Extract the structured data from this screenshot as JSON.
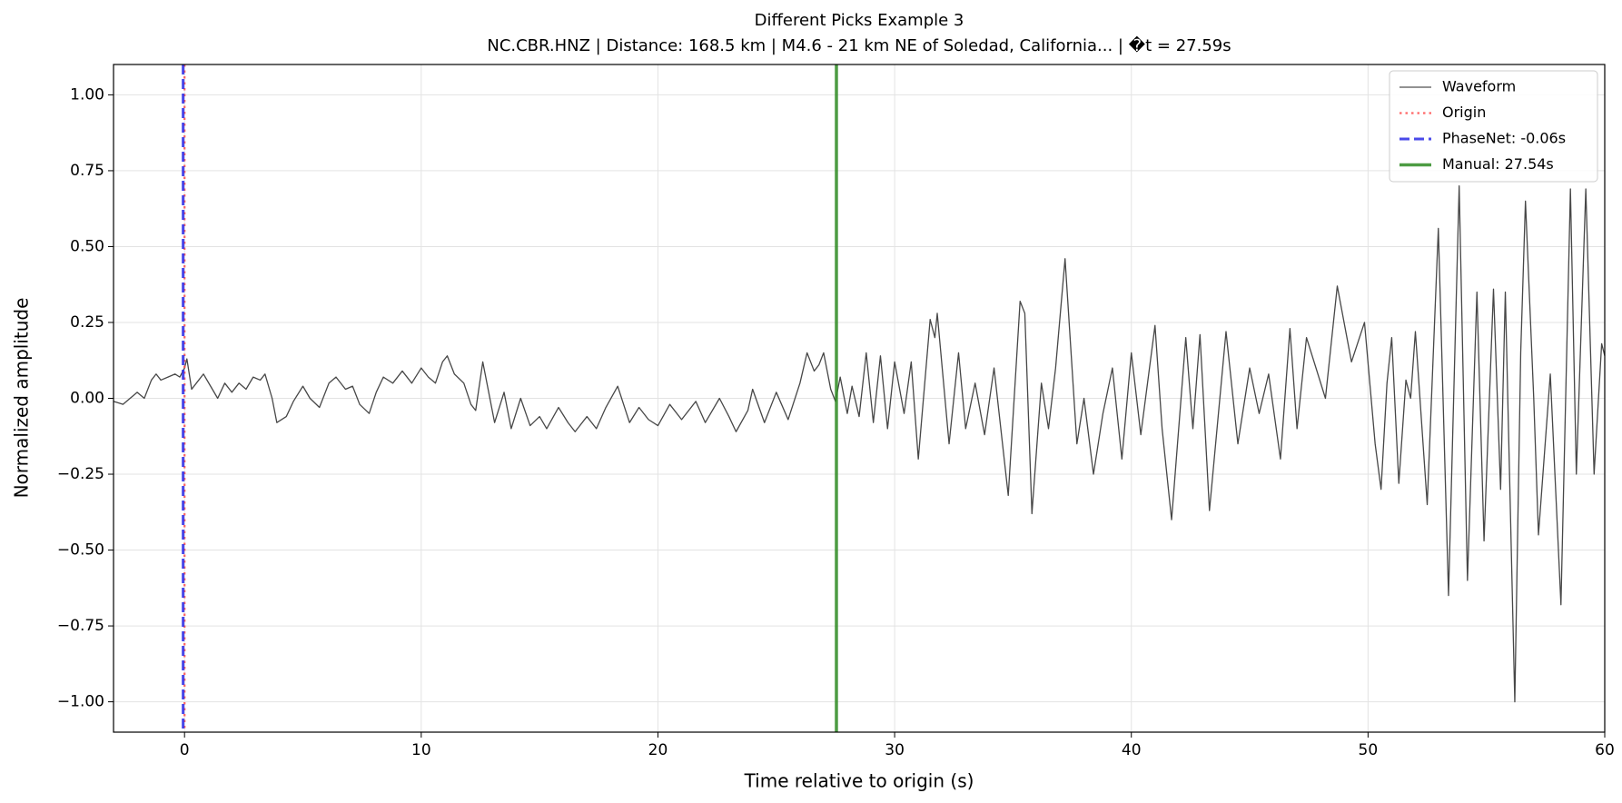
{
  "chart_data": {
    "type": "line",
    "title": "Different Picks Example 3",
    "subtitle": "NC.CBR.HNZ | Distance: 168.5 km | M4.6 - 21 km NE of Soledad, California... | �t = 27.59s",
    "x_label": "Time relative to origin (s)",
    "y_label": "Normalized amplitude",
    "xlim": [
      -3,
      60
    ],
    "ylim": [
      -1.1,
      1.1
    ],
    "xticks": [
      0,
      10,
      20,
      30,
      40,
      50,
      60
    ],
    "yticks": [
      {
        "value": -1,
        "label": "−1.00"
      },
      {
        "value": -0.75,
        "label": "−0.75"
      },
      {
        "value": -0.5,
        "label": "−0.50"
      },
      {
        "value": -0.25,
        "label": "−0.25"
      },
      {
        "value": 0,
        "label": "0.00"
      },
      {
        "value": 0.25,
        "label": "0.25"
      },
      {
        "value": 0.5,
        "label": "0.50"
      },
      {
        "value": 0.75,
        "label": "0.75"
      },
      {
        "value": 1,
        "label": "1.00"
      }
    ],
    "grid": true,
    "legend": "upper right",
    "series": [
      {
        "name": "Waveform",
        "color": "#333333",
        "x": [
          -3,
          -2.6,
          -2.3,
          -2,
          -1.7,
          -1.4,
          -1.2,
          -1,
          -0.7,
          -0.4,
          -0.2,
          0,
          0.1,
          0.3,
          0.6,
          0.8,
          1.1,
          1.4,
          1.7,
          2.0,
          2.3,
          2.6,
          2.9,
          3.2,
          3.4,
          3.7,
          3.9,
          4.3,
          4.6,
          5.0,
          5.3,
          5.7,
          6.1,
          6.4,
          6.8,
          7.1,
          7.4,
          7.8,
          8.1,
          8.4,
          8.8,
          9.2,
          9.6,
          10.0,
          10.3,
          10.6,
          10.9,
          11.1,
          11.4,
          11.8,
          12.1,
          12.3,
          12.6,
          12.9,
          13.1,
          13.5,
          13.8,
          14.2,
          14.6,
          15.0,
          15.3,
          15.8,
          16.2,
          16.5,
          17.0,
          17.4,
          17.8,
          18.3,
          18.8,
          19.2,
          19.6,
          20.0,
          20.5,
          21.0,
          21.6,
          22.0,
          22.6,
          23.0,
          23.3,
          23.8,
          24.0,
          24.5,
          25.0,
          25.5,
          26.0,
          26.3,
          26.6,
          26.8,
          27.0,
          27.3,
          27.5,
          27.7,
          28.0,
          28.2,
          28.5,
          28.8,
          29.1,
          29.4,
          29.7,
          30.0,
          30.4,
          30.7,
          31.0,
          31.5,
          31.7,
          31.8,
          32.3,
          32.7,
          33.0,
          33.4,
          33.8,
          34.2,
          34.8,
          35.3,
          35.5,
          35.8,
          36.2,
          36.5,
          36.8,
          37.2,
          37.7,
          38.0,
          38.4,
          38.8,
          39.2,
          39.6,
          40.0,
          40.4,
          41.0,
          41.3,
          41.7,
          42.3,
          42.6,
          42.9,
          43.3,
          44.0,
          44.5,
          45.0,
          45.4,
          45.8,
          46.3,
          46.7,
          47.0,
          47.4,
          47.8,
          48.2,
          48.7,
          49.3,
          49.85,
          50.3,
          50.55,
          50.8,
          51.0,
          51.3,
          51.6,
          51.8,
          52.0,
          52.5,
          52.97,
          53.4,
          53.85,
          54.2,
          54.6,
          54.9,
          55.3,
          55.6,
          55.8,
          56.2,
          56.45,
          56.65,
          57.0,
          57.2,
          57.7,
          58.15,
          58.55,
          58.8,
          59.2,
          59.55,
          59.87,
          60
        ],
        "values": [
          -0.01,
          -0.02,
          0.0,
          0.02,
          0.0,
          0.06,
          0.08,
          0.06,
          0.07,
          0.08,
          0.07,
          0.1,
          0.13,
          0.03,
          0.06,
          0.08,
          0.04,
          0.0,
          0.05,
          0.02,
          0.05,
          0.03,
          0.07,
          0.06,
          0.08,
          0.0,
          -0.08,
          -0.06,
          -0.01,
          0.04,
          0.0,
          -0.03,
          0.05,
          0.07,
          0.03,
          0.04,
          -0.02,
          -0.05,
          0.02,
          0.07,
          0.05,
          0.09,
          0.05,
          0.1,
          0.07,
          0.05,
          0.12,
          0.14,
          0.08,
          0.05,
          -0.02,
          -0.04,
          0.12,
          0.0,
          -0.08,
          0.02,
          -0.1,
          0.0,
          -0.09,
          -0.06,
          -0.1,
          -0.03,
          -0.08,
          -0.11,
          -0.06,
          -0.1,
          -0.03,
          0.04,
          -0.08,
          -0.03,
          -0.07,
          -0.09,
          -0.02,
          -0.07,
          -0.01,
          -0.08,
          0.0,
          -0.06,
          -0.11,
          -0.04,
          0.03,
          -0.08,
          0.02,
          -0.07,
          0.05,
          0.15,
          0.09,
          0.11,
          0.15,
          0.03,
          -0.01,
          0.07,
          -0.05,
          0.04,
          -0.06,
          0.15,
          -0.08,
          0.14,
          -0.1,
          0.12,
          -0.05,
          0.12,
          -0.2,
          0.26,
          0.2,
          0.28,
          -0.15,
          0.15,
          -0.1,
          0.05,
          -0.12,
          0.1,
          -0.32,
          0.32,
          0.28,
          -0.38,
          0.05,
          -0.1,
          0.1,
          0.46,
          -0.15,
          0.0,
          -0.25,
          -0.05,
          0.1,
          -0.2,
          0.15,
          -0.12,
          0.24,
          -0.1,
          -0.4,
          0.2,
          -0.1,
          0.21,
          -0.37,
          0.22,
          -0.15,
          0.1,
          -0.05,
          0.08,
          -0.2,
          0.23,
          -0.1,
          0.2,
          0.1,
          0.0,
          0.37,
          0.12,
          0.25,
          -0.15,
          -0.3,
          0.05,
          0.2,
          -0.28,
          0.06,
          0.0,
          0.22,
          -0.35,
          0.56,
          -0.65,
          0.7,
          -0.6,
          0.35,
          -0.47,
          0.36,
          -0.3,
          0.35,
          -1.0,
          0.15,
          0.65,
          0.0,
          -0.45,
          0.08,
          -0.68,
          0.69,
          -0.25,
          0.69,
          -0.25,
          0.18,
          0.14
        ]
      }
    ],
    "vlines": [
      {
        "name": "Origin",
        "x": 0,
        "color": "#ff4d4d",
        "style": "dotted"
      },
      {
        "name": "PhaseNet: -0.06s",
        "x": -0.06,
        "color": "#2a2ae6",
        "style": "dashed"
      },
      {
        "name": "Manual: 27.54s",
        "x": 27.54,
        "color": "#2e8b22",
        "style": "solid"
      }
    ]
  }
}
